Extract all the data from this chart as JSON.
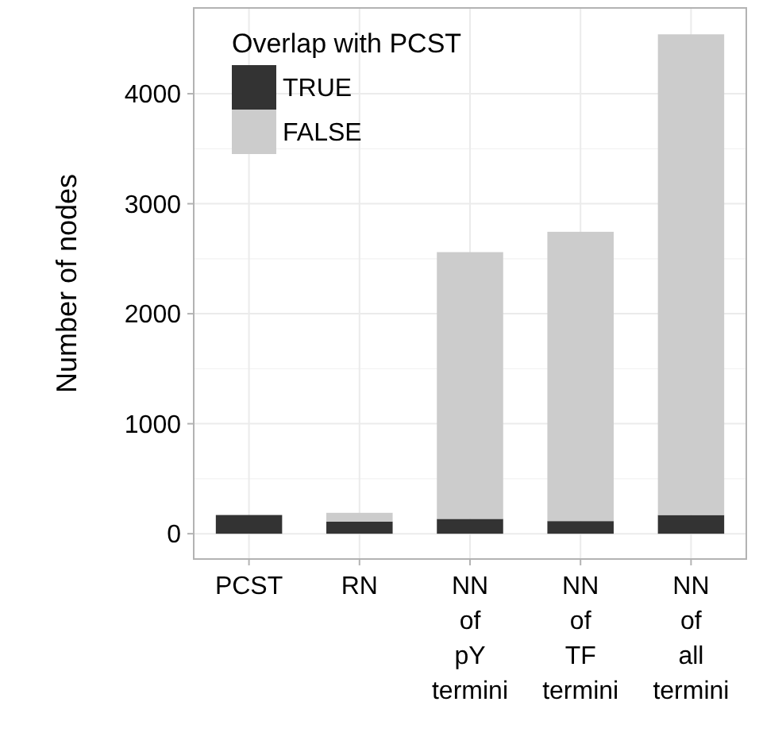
{
  "chart_data": {
    "type": "bar",
    "stacked": true,
    "ylabel": "Number of nodes",
    "legend_title": "Overlap with PCST",
    "legend": "top left",
    "grid": true,
    "categories": [
      "PCST",
      "RN",
      "NN of pY termini",
      "NN of TF termini",
      "NN of all termini"
    ],
    "series": [
      {
        "name": "TRUE",
        "color": "#333333",
        "values": [
          170,
          110,
          135,
          115,
          170
        ]
      },
      {
        "name": "FALSE",
        "color": "#cccccc",
        "values": [
          0,
          80,
          2425,
          2630,
          4370
        ]
      }
    ],
    "ylim": [
      -230,
      4780
    ],
    "yticks": [
      0,
      1000,
      2000,
      3000,
      4000
    ]
  }
}
